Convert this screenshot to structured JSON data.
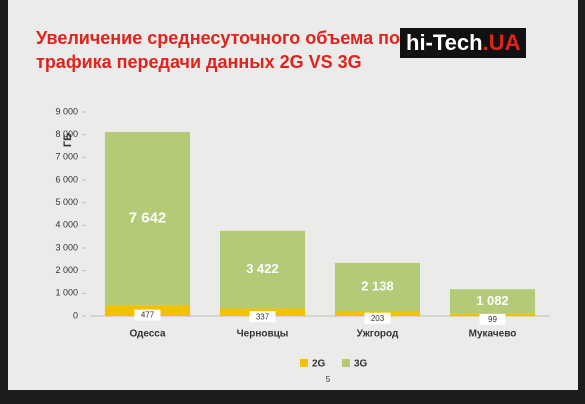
{
  "chart_data": {
    "type": "stacked_bar",
    "title": "Увеличение среднесуточного объема потребления трафика передачи данных 2G VS 3G",
    "y_label": "ГБ",
    "watermark": "hi-Tech",
    "watermark_suffix": ".UA",
    "page_number": "5",
    "categories": [
      "Одесса",
      "Черновцы",
      "Ужгород",
      "Мукачево"
    ],
    "series": [
      {
        "name": "2G",
        "color": "#f2c200",
        "values": [
          477,
          337,
          203,
          99
        ]
      },
      {
        "name": "3G",
        "color": "#b3ca77",
        "values": [
          7642,
          3422,
          2138,
          1082
        ],
        "value_labels": [
          "7 642",
          "3 422",
          "2 138",
          "1 082"
        ]
      }
    ],
    "ylim": [
      0,
      9000
    ],
    "yticks": [
      0,
      {
        "value": 1000,
        "label": "1 000"
      },
      {
        "value": 2000,
        "label": "2 000"
      },
      {
        "value": 3000,
        "label": "3 000"
      },
      {
        "value": 4000,
        "label": "4 000"
      },
      {
        "value": 5000,
        "label": "5 000"
      },
      {
        "value": 6000,
        "label": "6 000"
      },
      {
        "value": 7000,
        "label": "7 000"
      },
      {
        "value": 8000,
        "label": "8 000"
      },
      {
        "value": 9000,
        "label": "9 000"
      }
    ],
    "grid": false
  }
}
